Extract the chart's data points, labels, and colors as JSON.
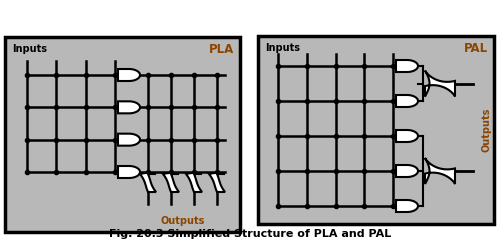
{
  "fig_width": 5.0,
  "fig_height": 2.42,
  "dpi": 100,
  "bg_color": "#ffffff",
  "box_color": "#b8b8b8",
  "title_text": "Fig. 20.3 Simplified Structure of PLA and PAL",
  "title_fontsize": 8,
  "pla_label": "PLA",
  "pal_label": "PAL",
  "inputs_label": "Inputs",
  "outputs_label": "Outputs",
  "label_color": "#8B4500",
  "gate_fill": "#ffffff",
  "gate_edge": "#000000",
  "line_color": "#000000",
  "lw": 1.5
}
